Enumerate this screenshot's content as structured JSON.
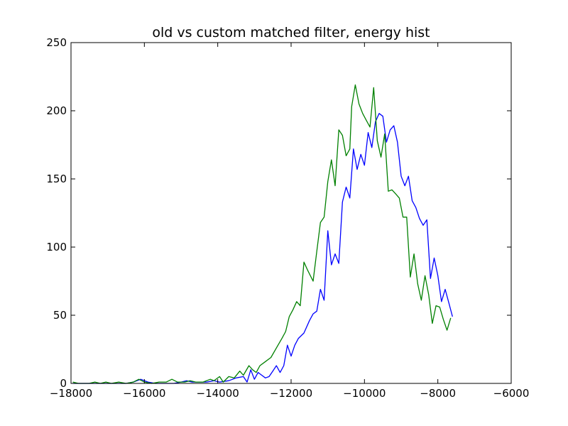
{
  "chart_data": {
    "type": "line",
    "title": "old vs custom matched filter, energy hist",
    "xlabel": "",
    "ylabel": "",
    "xlim": [
      -18000,
      -6000
    ],
    "ylim": [
      0,
      250
    ],
    "grid": false,
    "x_ticks": [
      -18000,
      -16000,
      -14000,
      -12000,
      -10000,
      -8000,
      -6000
    ],
    "x_tick_labels": [
      "−18000",
      "−16000",
      "−14000",
      "−12000",
      "−10000",
      "−8000",
      "−6000"
    ],
    "y_ticks": [
      0,
      50,
      100,
      150,
      200,
      250
    ],
    "y_tick_labels": [
      "0",
      "50",
      "100",
      "150",
      "200",
      "250"
    ],
    "series": [
      {
        "color": "#0000ff",
        "points": [
          [
            -17950,
            0
          ],
          [
            -17500,
            0
          ],
          [
            -17000,
            0
          ],
          [
            -16500,
            0
          ],
          [
            -16300,
            1
          ],
          [
            -16100,
            3
          ],
          [
            -15900,
            1
          ],
          [
            -15700,
            0
          ],
          [
            -15500,
            0
          ],
          [
            -15200,
            0
          ],
          [
            -15000,
            1
          ],
          [
            -14850,
            2
          ],
          [
            -14700,
            1
          ],
          [
            -14500,
            1
          ],
          [
            -14300,
            1
          ],
          [
            -14100,
            2
          ],
          [
            -13950,
            1
          ],
          [
            -13700,
            2
          ],
          [
            -13500,
            4
          ],
          [
            -13300,
            5
          ],
          [
            -13200,
            1
          ],
          [
            -13100,
            10
          ],
          [
            -13000,
            3
          ],
          [
            -12900,
            8
          ],
          [
            -12800,
            6
          ],
          [
            -12700,
            4
          ],
          [
            -12600,
            5
          ],
          [
            -12500,
            9
          ],
          [
            -12400,
            13
          ],
          [
            -12300,
            8
          ],
          [
            -12200,
            13
          ],
          [
            -12100,
            28
          ],
          [
            -12000,
            20
          ],
          [
            -11900,
            28
          ],
          [
            -11800,
            33
          ],
          [
            -11650,
            37
          ],
          [
            -11500,
            46
          ],
          [
            -11400,
            51
          ],
          [
            -11300,
            53
          ],
          [
            -11200,
            69
          ],
          [
            -11100,
            61
          ],
          [
            -11000,
            112
          ],
          [
            -10900,
            87
          ],
          [
            -10800,
            95
          ],
          [
            -10700,
            88
          ],
          [
            -10600,
            133
          ],
          [
            -10500,
            144
          ],
          [
            -10400,
            136
          ],
          [
            -10300,
            172
          ],
          [
            -10200,
            157
          ],
          [
            -10100,
            168
          ],
          [
            -10000,
            160
          ],
          [
            -9900,
            184
          ],
          [
            -9800,
            173
          ],
          [
            -9700,
            192
          ],
          [
            -9600,
            198
          ],
          [
            -9500,
            196
          ],
          [
            -9400,
            177
          ],
          [
            -9300,
            186
          ],
          [
            -9200,
            189
          ],
          [
            -9100,
            177
          ],
          [
            -9000,
            152
          ],
          [
            -8900,
            145
          ],
          [
            -8800,
            152
          ],
          [
            -8700,
            134
          ],
          [
            -8600,
            129
          ],
          [
            -8500,
            121
          ],
          [
            -8400,
            116
          ],
          [
            -8300,
            120
          ],
          [
            -8200,
            77
          ],
          [
            -8100,
            92
          ],
          [
            -8000,
            79
          ],
          [
            -7900,
            60
          ],
          [
            -7800,
            69
          ],
          [
            -7700,
            59
          ],
          [
            -7600,
            49
          ]
        ]
      },
      {
        "color": "#008000",
        "points": [
          [
            -17950,
            1
          ],
          [
            -17800,
            0
          ],
          [
            -17500,
            0
          ],
          [
            -17350,
            1
          ],
          [
            -17200,
            0
          ],
          [
            -17050,
            1
          ],
          [
            -16900,
            0
          ],
          [
            -16700,
            1
          ],
          [
            -16500,
            0
          ],
          [
            -16300,
            1
          ],
          [
            -16150,
            3
          ],
          [
            -16000,
            1
          ],
          [
            -15800,
            0
          ],
          [
            -15600,
            1
          ],
          [
            -15400,
            1
          ],
          [
            -15250,
            3
          ],
          [
            -15100,
            1
          ],
          [
            -14900,
            1
          ],
          [
            -14750,
            2
          ],
          [
            -14600,
            1
          ],
          [
            -14400,
            1
          ],
          [
            -14200,
            3
          ],
          [
            -14100,
            2
          ],
          [
            -13950,
            5
          ],
          [
            -13850,
            1
          ],
          [
            -13700,
            5
          ],
          [
            -13550,
            4
          ],
          [
            -13400,
            9
          ],
          [
            -13300,
            6
          ],
          [
            -13150,
            13
          ],
          [
            -13050,
            10
          ],
          [
            -12950,
            8
          ],
          [
            -12850,
            13
          ],
          [
            -12700,
            16
          ],
          [
            -12550,
            19
          ],
          [
            -12400,
            26
          ],
          [
            -12250,
            33
          ],
          [
            -12150,
            38
          ],
          [
            -12050,
            49
          ],
          [
            -11950,
            54
          ],
          [
            -11850,
            60
          ],
          [
            -11750,
            57
          ],
          [
            -11650,
            89
          ],
          [
            -11550,
            83
          ],
          [
            -11400,
            75
          ],
          [
            -11300,
            97
          ],
          [
            -11200,
            118
          ],
          [
            -11100,
            122
          ],
          [
            -11000,
            148
          ],
          [
            -10900,
            164
          ],
          [
            -10800,
            145
          ],
          [
            -10700,
            186
          ],
          [
            -10600,
            182
          ],
          [
            -10500,
            167
          ],
          [
            -10400,
            172
          ],
          [
            -10350,
            203
          ],
          [
            -10250,
            219
          ],
          [
            -10150,
            205
          ],
          [
            -10050,
            198
          ],
          [
            -9950,
            193
          ],
          [
            -9850,
            188
          ],
          [
            -9750,
            217
          ],
          [
            -9650,
            178
          ],
          [
            -9550,
            166
          ],
          [
            -9450,
            183
          ],
          [
            -9350,
            141
          ],
          [
            -9250,
            142
          ],
          [
            -9150,
            139
          ],
          [
            -9050,
            136
          ],
          [
            -8950,
            122
          ],
          [
            -8850,
            122
          ],
          [
            -8750,
            78
          ],
          [
            -8650,
            95
          ],
          [
            -8550,
            73
          ],
          [
            -8450,
            61
          ],
          [
            -8350,
            79
          ],
          [
            -8250,
            65
          ],
          [
            -8150,
            44
          ],
          [
            -8050,
            57
          ],
          [
            -7950,
            56
          ],
          [
            -7850,
            47
          ],
          [
            -7750,
            39
          ],
          [
            -7650,
            48
          ]
        ]
      }
    ]
  }
}
